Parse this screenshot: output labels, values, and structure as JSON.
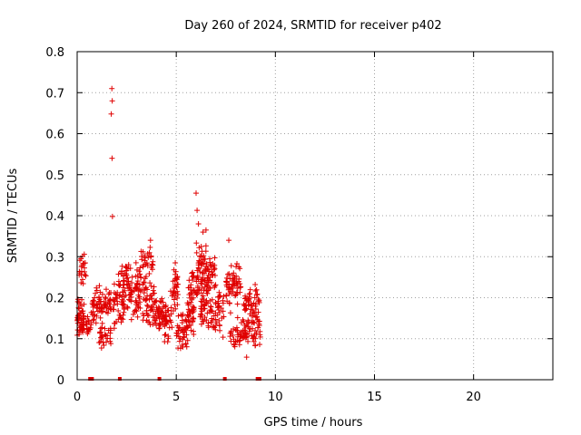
{
  "chart_data": {
    "type": "scatter",
    "title": "Day 260 of 2024, SRMTID for receiver p402",
    "xlabel": "GPS time / hours",
    "ylabel": "SRMTID / TECUs",
    "xlim": [
      0,
      24
    ],
    "ylim": [
      0,
      0.8
    ],
    "xticks": [
      0,
      5,
      10,
      15,
      20
    ],
    "xtick_labels": [
      "0",
      "5",
      "10",
      "15",
      "20"
    ],
    "yticks": [
      0,
      0.1,
      0.2,
      0.3,
      0.4,
      0.5,
      0.6,
      0.7,
      0.8
    ],
    "ytick_labels": [
      "0",
      "0.1",
      "0.2",
      "0.3",
      "0.4",
      "0.5",
      "0.6",
      "0.7",
      "0.8"
    ],
    "grid": true,
    "marker": "+",
    "color": "#e00000",
    "series": [
      {
        "name": "SRMTID",
        "clusters": [
          {
            "x": [
              0.0,
              0.35
            ],
            "y": [
              0.09,
              0.21
            ],
            "n": 55
          },
          {
            "x": [
              0.1,
              0.45
            ],
            "y": [
              0.22,
              0.32
            ],
            "n": 22
          },
          {
            "x": [
              0.45,
              0.75
            ],
            "y": [
              0.09,
              0.17
            ],
            "n": 18
          },
          {
            "x": [
              0.75,
              1.3
            ],
            "y": [
              0.12,
              0.24
            ],
            "n": 45
          },
          {
            "x": [
              1.1,
              1.7
            ],
            "y": [
              0.07,
              0.14
            ],
            "n": 28
          },
          {
            "x": [
              1.35,
              1.8
            ],
            "y": [
              0.15,
              0.23
            ],
            "n": 30
          },
          {
            "x": [
              1.85,
              2.4
            ],
            "y": [
              0.12,
              0.28
            ],
            "n": 50
          },
          {
            "x": [
              2.2,
              2.6
            ],
            "y": [
              0.18,
              0.3
            ],
            "n": 24
          },
          {
            "x": [
              2.5,
              3.2
            ],
            "y": [
              0.14,
              0.29
            ],
            "n": 60
          },
          {
            "x": [
              3.1,
              3.5
            ],
            "y": [
              0.2,
              0.35
            ],
            "n": 22
          },
          {
            "x": [
              3.3,
              3.9
            ],
            "y": [
              0.13,
              0.24
            ],
            "n": 45
          },
          {
            "x": [
              3.5,
              3.9
            ],
            "y": [
              0.23,
              0.35
            ],
            "n": 16
          },
          {
            "x": [
              3.9,
              4.5
            ],
            "y": [
              0.11,
              0.21
            ],
            "n": 50
          },
          {
            "x": [
              4.4,
              4.8
            ],
            "y": [
              0.08,
              0.2
            ],
            "n": 28
          },
          {
            "x": [
              4.7,
              5.1
            ],
            "y": [
              0.15,
              0.29
            ],
            "n": 34
          },
          {
            "x": [
              5.0,
              5.6
            ],
            "y": [
              0.06,
              0.17
            ],
            "n": 45
          },
          {
            "x": [
              5.5,
              5.9
            ],
            "y": [
              0.1,
              0.2
            ],
            "n": 28
          },
          {
            "x": [
              5.6,
              6.1
            ],
            "y": [
              0.16,
              0.27
            ],
            "n": 35
          },
          {
            "x": [
              6.0,
              6.5
            ],
            "y": [
              0.2,
              0.34
            ],
            "n": 50
          },
          {
            "x": [
              6.2,
              6.8
            ],
            "y": [
              0.1,
              0.24
            ],
            "n": 45
          },
          {
            "x": [
              6.5,
              7.0
            ],
            "y": [
              0.2,
              0.32
            ],
            "n": 45
          },
          {
            "x": [
              6.8,
              7.4
            ],
            "y": [
              0.1,
              0.22
            ],
            "n": 40
          },
          {
            "x": [
              7.5,
              8.3
            ],
            "y": [
              0.17,
              0.29
            ],
            "n": 60
          },
          {
            "x": [
              7.7,
              8.5
            ],
            "y": [
              0.07,
              0.17
            ],
            "n": 45
          },
          {
            "x": [
              8.4,
              9.2
            ],
            "y": [
              0.14,
              0.24
            ],
            "n": 50
          },
          {
            "x": [
              8.5,
              9.3
            ],
            "y": [
              0.07,
              0.16
            ],
            "n": 45
          }
        ],
        "outliers": {
          "x": [
            1.75,
            1.77,
            1.72,
            1.76,
            1.78,
            6.0,
            6.05,
            6.12,
            6.35,
            6.5,
            3.7,
            7.65,
            4.95,
            8.55
          ],
          "y": [
            0.71,
            0.68,
            0.648,
            0.54,
            0.398,
            0.455,
            0.413,
            0.38,
            0.36,
            0.365,
            0.34,
            0.34,
            0.285,
            0.055
          ]
        },
        "zero_markers_x": [
          0.65,
          0.75,
          2.15,
          4.15,
          7.45,
          9.1,
          9.2
        ]
      }
    ]
  }
}
